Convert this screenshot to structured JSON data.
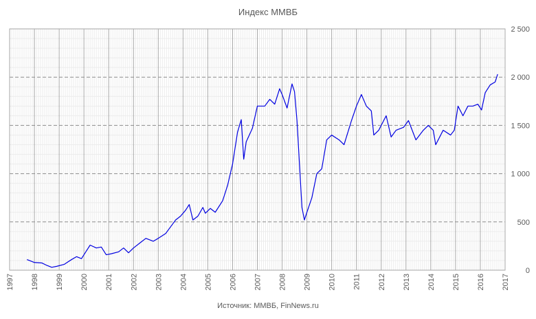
{
  "chart_data": {
    "type": "line",
    "title": "Индекс ММВБ",
    "source": "Источник: ММВБ, FinNews.ru",
    "x": [
      1997.7,
      1997.8,
      1998.0,
      1998.3,
      1998.5,
      1998.7,
      1998.9,
      1999.2,
      1999.5,
      1999.7,
      1999.9,
      2000.1,
      2000.25,
      2000.5,
      2000.7,
      2000.9,
      2001.1,
      2001.4,
      2001.6,
      2001.8,
      2002.0,
      2002.3,
      2002.5,
      2002.8,
      2003.0,
      2003.3,
      2003.5,
      2003.7,
      2003.9,
      2004.1,
      2004.25,
      2004.4,
      2004.6,
      2004.8,
      2004.9,
      2005.1,
      2005.3,
      2005.6,
      2005.8,
      2006.0,
      2006.2,
      2006.35,
      2006.45,
      2006.55,
      2006.8,
      2007.0,
      2007.3,
      2007.5,
      2007.7,
      2007.9,
      2008.0,
      2008.2,
      2008.4,
      2008.5,
      2008.6,
      2008.7,
      2008.8,
      2008.9,
      2009.0,
      2009.2,
      2009.4,
      2009.6,
      2009.8,
      2010.0,
      2010.3,
      2010.5,
      2010.8,
      2011.0,
      2011.2,
      2011.4,
      2011.6,
      2011.7,
      2011.9,
      2012.2,
      2012.4,
      2012.6,
      2012.9,
      2013.1,
      2013.4,
      2013.7,
      2013.9,
      2014.1,
      2014.2,
      2014.5,
      2014.8,
      2014.95,
      2015.1,
      2015.3,
      2015.5,
      2015.7,
      2015.9,
      2016.05,
      2016.2,
      2016.4,
      2016.6,
      2016.7
    ],
    "series": [
      {
        "color": "#0000e0",
        "values": [
          110,
          100,
          80,
          75,
          50,
          30,
          40,
          60,
          110,
          140,
          120,
          200,
          260,
          230,
          240,
          160,
          170,
          190,
          230,
          180,
          230,
          290,
          330,
          300,
          330,
          380,
          450,
          520,
          560,
          620,
          680,
          520,
          560,
          650,
          590,
          640,
          600,
          720,
          880,
          1100,
          1430,
          1560,
          1150,
          1330,
          1470,
          1700,
          1700,
          1770,
          1720,
          1880,
          1820,
          1680,
          1930,
          1850,
          1550,
          1100,
          650,
          520,
          600,
          750,
          1000,
          1050,
          1350,
          1400,
          1350,
          1300,
          1550,
          1700,
          1820,
          1700,
          1650,
          1400,
          1450,
          1600,
          1380,
          1450,
          1480,
          1550,
          1350,
          1450,
          1500,
          1450,
          1300,
          1450,
          1400,
          1450,
          1700,
          1600,
          1700,
          1700,
          1720,
          1660,
          1840,
          1920,
          1950,
          2030
        ]
      }
    ],
    "xlim": [
      1997,
      2017
    ],
    "xticks": [
      1997,
      1998,
      1999,
      2000,
      2001,
      2002,
      2003,
      2004,
      2005,
      2006,
      2007,
      2008,
      2009,
      2010,
      2011,
      2012,
      2013,
      2014,
      2015,
      2016,
      2017
    ],
    "ylim": [
      0,
      2500
    ],
    "yticks": [
      0,
      500,
      {
        "value": 1000,
        "label": "1 000"
      },
      {
        "value": 1500,
        "label": "1 500"
      },
      {
        "value": 2000,
        "label": "2 000"
      },
      {
        "value": 2500,
        "label": "2 500"
      }
    ],
    "grid": true
  }
}
